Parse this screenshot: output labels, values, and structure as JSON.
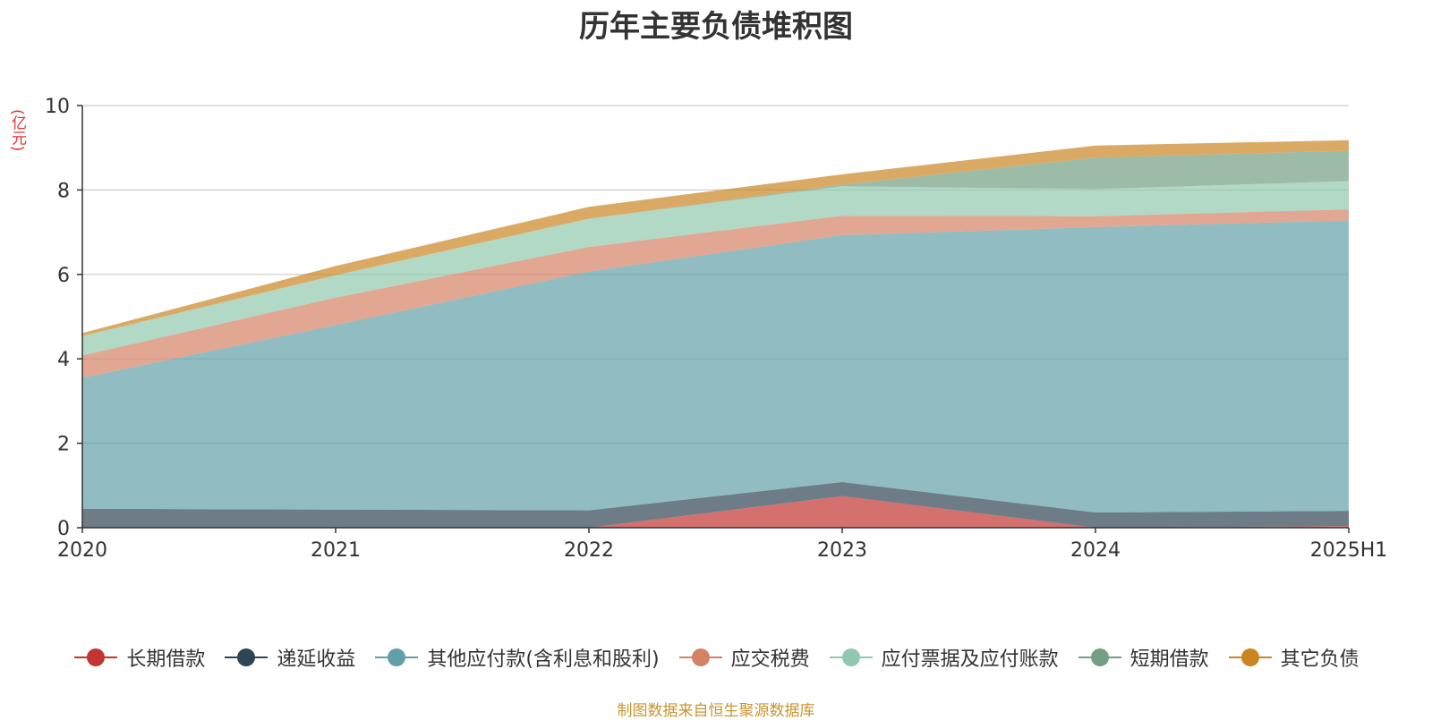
{
  "title": "历年主要负债堆积图",
  "unit_label": "(亿元)",
  "source_note": "制图数据来自恒生聚源数据库",
  "chart_data": {
    "type": "area",
    "stacked": true,
    "title": "历年主要负债堆积图",
    "ylabel": "(亿元)",
    "xlabel": "",
    "ylim": [
      0,
      10
    ],
    "yticks": [
      0,
      2,
      4,
      6,
      8,
      10
    ],
    "grid": true,
    "legend_position": "bottom",
    "categories": [
      "2020",
      "2021",
      "2022",
      "2023",
      "2024",
      "2025H1"
    ],
    "series": [
      {
        "name": "长期借款",
        "color": "#c23531",
        "values": [
          0,
          0,
          0,
          0.75,
          0,
          0.04
        ]
      },
      {
        "name": "递延收益",
        "color": "#2f4554",
        "values": [
          0.45,
          0.43,
          0.41,
          0.33,
          0.36,
          0.36
        ]
      },
      {
        "name": "其他应付款(含利息和股利)",
        "color": "#61a0a8",
        "values": [
          3.1,
          4.37,
          5.66,
          5.85,
          6.76,
          6.88
        ]
      },
      {
        "name": "应交税费",
        "color": "#d48265",
        "values": [
          0.53,
          0.65,
          0.58,
          0.46,
          0.26,
          0.26
        ]
      },
      {
        "name": "应付票据及应付账款",
        "color": "#91c7ae",
        "values": [
          0.46,
          0.53,
          0.67,
          0.7,
          0.64,
          0.67
        ]
      },
      {
        "name": "短期借款",
        "color": "#749f83",
        "values": [
          0,
          0,
          0,
          0.04,
          0.75,
          0.72
        ]
      },
      {
        "name": "其它负债",
        "color": "#ca8622",
        "values": [
          0.07,
          0.22,
          0.28,
          0.24,
          0.28,
          0.25
        ]
      }
    ]
  }
}
